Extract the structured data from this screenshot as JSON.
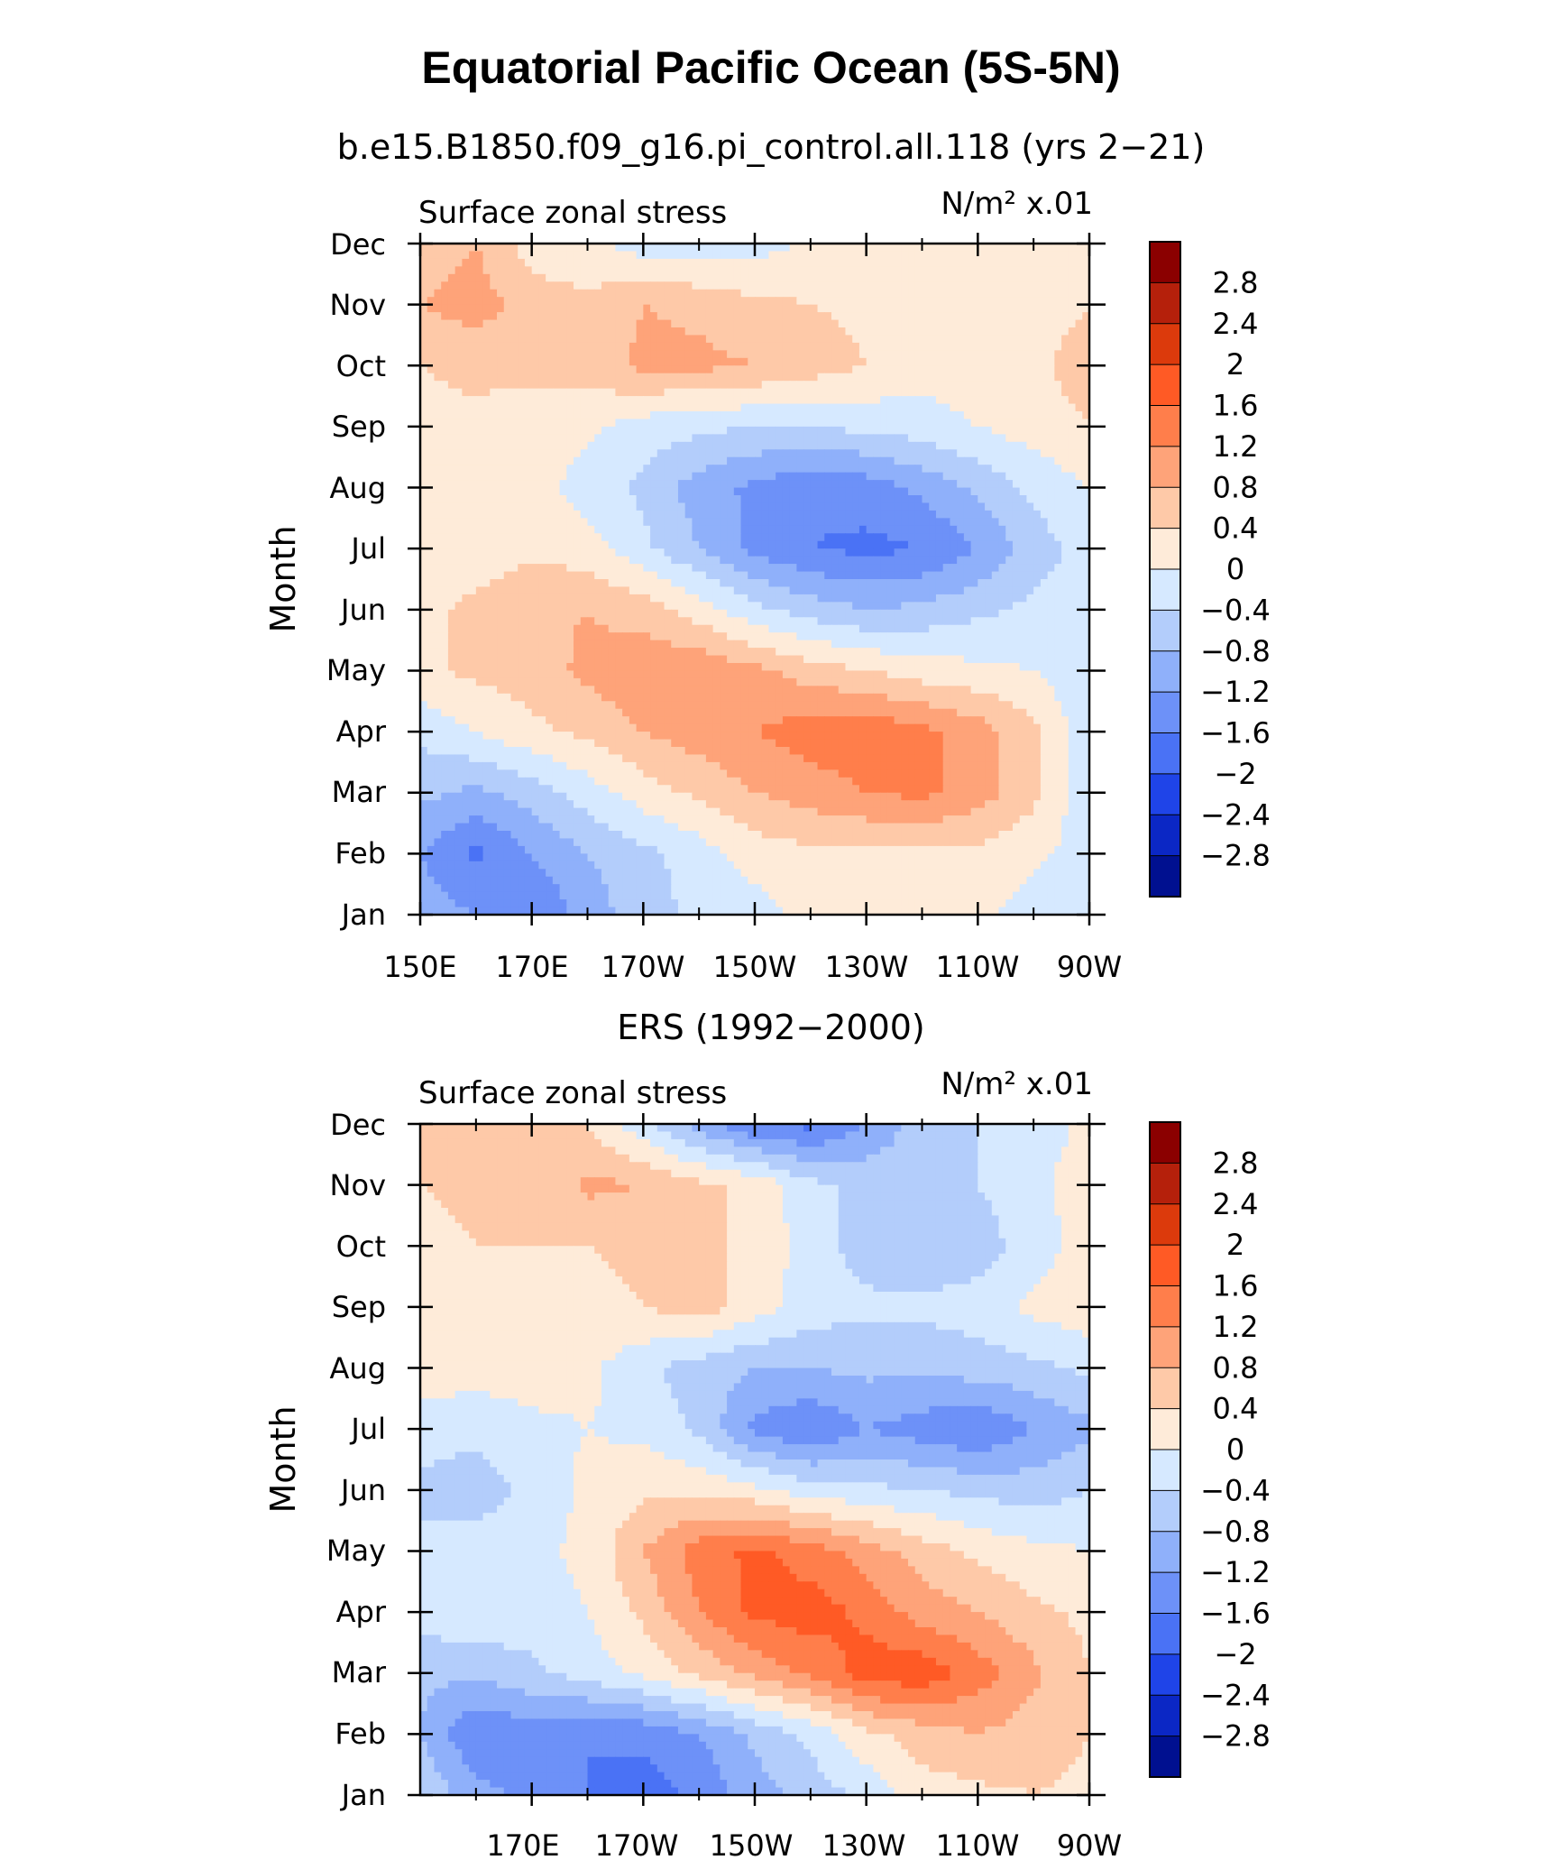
{
  "main_title": "Equatorial Pacific Ocean (5S-5N)",
  "chart_data": [
    {
      "type": "heatmap",
      "title": "b.e15.B1850.f09_g16.pi_control.all.118 (yrs 2−21)",
      "left_label": "Surface zonal stress",
      "units": "N/m² x.01",
      "ylabel": "Month",
      "xlabel": "",
      "x_ticks": [
        "150E",
        "170E",
        "170W",
        "150W",
        "130W",
        "110W",
        "90W"
      ],
      "y_ticks": [
        "Jan",
        "Feb",
        "Mar",
        "Apr",
        "May",
        "Jun",
        "Jul",
        "Aug",
        "Sep",
        "Oct",
        "Nov",
        "Dec"
      ],
      "xlim_deg_east": [
        150,
        270
      ],
      "levels": [
        -2.8,
        -2.4,
        -2,
        -1.6,
        -1.2,
        -0.8,
        -0.4,
        0,
        0.4,
        0.8,
        1.2,
        1.6,
        2,
        2.4,
        2.8
      ],
      "x_deg_east": [
        150,
        160,
        170,
        180,
        190,
        200,
        210,
        220,
        230,
        240,
        250,
        260,
        270
      ],
      "values": [
        [
          -1.0,
          -1.2,
          -1.6,
          -1.0,
          -0.6,
          -0.3,
          -0.2,
          0.2,
          0.2,
          0.3,
          0.1,
          -0.2,
          -0.2
        ],
        [
          -1.2,
          -1.7,
          -1.2,
          -0.8,
          -0.5,
          -0.2,
          0.2,
          0.3,
          0.3,
          0.3,
          0.3,
          0.1,
          -0.2
        ],
        [
          -0.7,
          -0.9,
          -0.6,
          -0.2,
          0.2,
          0.5,
          0.8,
          1.0,
          1.2,
          1.3,
          1.0,
          0.5,
          -0.3
        ],
        [
          -0.3,
          0.0,
          0.3,
          0.5,
          0.8,
          1.0,
          1.2,
          1.4,
          1.5,
          1.3,
          1.0,
          0.5,
          -0.3
        ],
        [
          0.3,
          0.5,
          0.6,
          0.9,
          1.1,
          1.1,
          0.9,
          0.6,
          0.4,
          0.2,
          0.1,
          0.0,
          -0.3
        ],
        [
          0.3,
          0.5,
          0.7,
          0.8,
          0.6,
          0.2,
          -0.3,
          -0.6,
          -0.8,
          -0.7,
          -0.5,
          -0.3,
          -0.3
        ],
        [
          0.2,
          0.2,
          0.3,
          0.2,
          -0.3,
          -0.8,
          -1.3,
          -1.6,
          -1.7,
          -1.6,
          -1.2,
          -0.6,
          -0.2
        ],
        [
          0.2,
          0.2,
          0.2,
          -0.2,
          -0.5,
          -1.0,
          -1.3,
          -1.5,
          -1.4,
          -1.1,
          -0.7,
          -0.3,
          0.0
        ],
        [
          0.3,
          0.3,
          0.2,
          0.1,
          -0.2,
          -0.3,
          -0.4,
          -0.4,
          -0.3,
          -0.2,
          0.0,
          0.2,
          0.4
        ],
        [
          0.4,
          0.5,
          0.5,
          0.6,
          0.9,
          0.9,
          0.8,
          0.6,
          0.4,
          0.2,
          0.2,
          0.3,
          0.6
        ],
        [
          0.8,
          1.0,
          0.6,
          0.5,
          0.8,
          0.7,
          0.5,
          0.4,
          0.3,
          0.2,
          0.2,
          0.2,
          0.4
        ],
        [
          0.6,
          0.8,
          0.2,
          0.1,
          -0.2,
          -0.3,
          -0.2,
          0.1,
          0.2,
          0.1,
          0.3,
          0.2,
          0.2
        ]
      ]
    },
    {
      "type": "heatmap",
      "title": "ERS (1992−2000)",
      "left_label": "Surface zonal stress",
      "units": "N/m² x.01",
      "ylabel": "Month",
      "xlabel": "",
      "x_ticks": [
        "170E",
        "170W",
        "150W",
        "130W",
        "110W",
        "90W"
      ],
      "x_tick_positions_deg_east": [
        170,
        190,
        210,
        230,
        250,
        270
      ],
      "y_ticks": [
        "Jan",
        "Feb",
        "Mar",
        "Apr",
        "May",
        "Jun",
        "Jul",
        "Aug",
        "Sep",
        "Oct",
        "Nov",
        "Dec"
      ],
      "xlim_deg_east": [
        150,
        270
      ],
      "levels": [
        -2.8,
        -2.4,
        -2,
        -1.6,
        -1.2,
        -0.8,
        -0.4,
        0,
        0.4,
        0.8,
        1.2,
        1.6,
        2,
        2.4,
        2.8
      ],
      "x_deg_east": [
        150,
        160,
        170,
        180,
        190,
        200,
        210,
        220,
        230,
        240,
        250,
        260,
        270
      ],
      "values": [
        [
          -0.5,
          -1.0,
          -1.4,
          -1.6,
          -1.8,
          -1.5,
          -1.0,
          -0.6,
          -0.3,
          0.2,
          0.3,
          0.4,
          0.3
        ],
        [
          -0.8,
          -1.6,
          -1.4,
          -1.6,
          -1.5,
          -1.2,
          -0.7,
          -0.3,
          0.3,
          0.6,
          0.8,
          0.6,
          0.4
        ],
        [
          -0.7,
          -0.7,
          -0.5,
          -0.2,
          0.1,
          0.5,
          0.9,
          1.3,
          1.8,
          1.9,
          1.4,
          0.9,
          0.4
        ],
        [
          -0.2,
          -0.1,
          -0.2,
          0.0,
          0.5,
          1.2,
          1.7,
          1.8,
          1.5,
          1.0,
          0.8,
          0.5,
          0.3
        ],
        [
          -0.3,
          -0.2,
          -0.1,
          0.1,
          0.8,
          1.4,
          1.7,
          1.4,
          1.0,
          0.6,
          0.3,
          0.1,
          0.0
        ],
        [
          -0.5,
          -0.6,
          -0.3,
          0.1,
          0.3,
          0.3,
          0.1,
          -0.2,
          -0.3,
          -0.4,
          -0.5,
          -0.6,
          -0.4
        ],
        [
          -0.2,
          -0.3,
          -0.1,
          0.0,
          -0.1,
          -0.5,
          -1.3,
          -1.6,
          -1.2,
          -1.4,
          -1.6,
          -1.2,
          -0.9
        ],
        [
          0.2,
          0.2,
          0.2,
          0.1,
          -0.3,
          -0.6,
          -0.8,
          -0.8,
          -0.7,
          -0.7,
          -0.6,
          -0.5,
          -0.3
        ],
        [
          0.3,
          0.3,
          0.4,
          0.3,
          0.4,
          0.6,
          0.2,
          -0.2,
          -0.3,
          -0.3,
          -0.2,
          0.1,
          0.3
        ],
        [
          0.3,
          0.4,
          0.4,
          0.4,
          0.5,
          0.5,
          0.3,
          -0.2,
          -0.6,
          -0.8,
          -0.6,
          -0.2,
          0.2
        ],
        [
          0.4,
          0.5,
          0.5,
          0.9,
          0.8,
          0.5,
          0.3,
          -0.3,
          -0.5,
          -0.5,
          -0.4,
          -0.1,
          0.2
        ],
        [
          0.5,
          0.7,
          0.5,
          0.4,
          -0.3,
          -1.0,
          -1.6,
          -1.7,
          -1.2,
          -0.6,
          -0.4,
          -0.2,
          0.1
        ]
      ]
    }
  ],
  "colorbar": {
    "labels": [
      "2.8",
      "2.4",
      "2",
      "1.6",
      "1.2",
      "0.8",
      "0.4",
      "0",
      "−0.4",
      "−0.8",
      "−1.2",
      "−1.6",
      "−2",
      "−2.4",
      "−2.8"
    ],
    "colors": [
      "#8b0000",
      "#b5200b",
      "#dc3a0c",
      "#ff5a25",
      "#ff7e4b",
      "#fea379",
      "#fec9a8",
      "#feebd9",
      "#d6e9ff",
      "#b3cdfb",
      "#8fb0fa",
      "#6d91f8",
      "#4a72f5",
      "#1f44e8",
      "#0b27c5",
      "#001090"
    ]
  }
}
